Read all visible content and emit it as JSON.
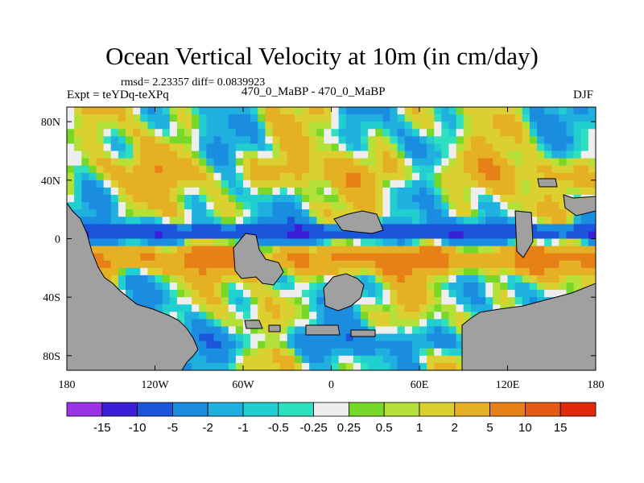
{
  "chart_data": {
    "type": "heatmap",
    "title": "Ocean Vertical Velocity at 10m (in cm/day)",
    "subtitle": "rmsd= 2.23357 diff= 0.0839923",
    "left_label": "Expt = teYDq-teXPq",
    "center_label": "470_0_MaBP - 470_0_MaBP",
    "right_label": "DJF",
    "xlabel": "",
    "ylabel": "",
    "x_ticks": [
      "180",
      "120W",
      "60W",
      "0",
      "60E",
      "120E",
      "180"
    ],
    "x_tick_values": [
      -180,
      -120,
      -60,
      0,
      60,
      120,
      180
    ],
    "y_ticks": [
      "80N",
      "40N",
      "0",
      "40S",
      "80S"
    ],
    "y_tick_values": [
      80,
      40,
      0,
      -40,
      -80
    ],
    "xlim": [
      -180,
      180
    ],
    "ylim": [
      -90,
      90
    ],
    "colorbar": {
      "levels": [
        "-15",
        "-10",
        "-5",
        "-2",
        "-1",
        "-0.5",
        "-0.25",
        "0.25",
        "0.5",
        "1",
        "2",
        "5",
        "10",
        "15"
      ],
      "colors": [
        "#9a32e6",
        "#3b1fd8",
        "#1b55dc",
        "#1b8de0",
        "#1fb0e0",
        "#22cfd0",
        "#2ee0c0",
        "#eeeeee",
        "#78d82a",
        "#b4e03a",
        "#dcd030",
        "#e6b024",
        "#e88018",
        "#e45a14",
        "#e02a0a"
      ]
    },
    "land_color": "#a0a0a0",
    "zonal_bands": [
      {
        "lat_range": [
          90,
          70
        ],
        "pattern": "mixed cyan/green/white, weak"
      },
      {
        "lat_range": [
          70,
          30
        ],
        "pattern": "green/yellow bands with white gaps"
      },
      {
        "lat_range": [
          10,
          -5
        ],
        "pattern": "blue/dark-blue equatorial downwelling band across Pacific and Atlantic"
      },
      {
        "lat_range": [
          -5,
          -25
        ],
        "pattern": "orange/yellow upwelling band"
      },
      {
        "lat_range": [
          -25,
          -60
        ],
        "pattern": "green/yellow with cyan patches"
      },
      {
        "lat_range": [
          -60,
          -85
        ],
        "pattern": "cyan/blue near Antarctic margin"
      }
    ]
  }
}
